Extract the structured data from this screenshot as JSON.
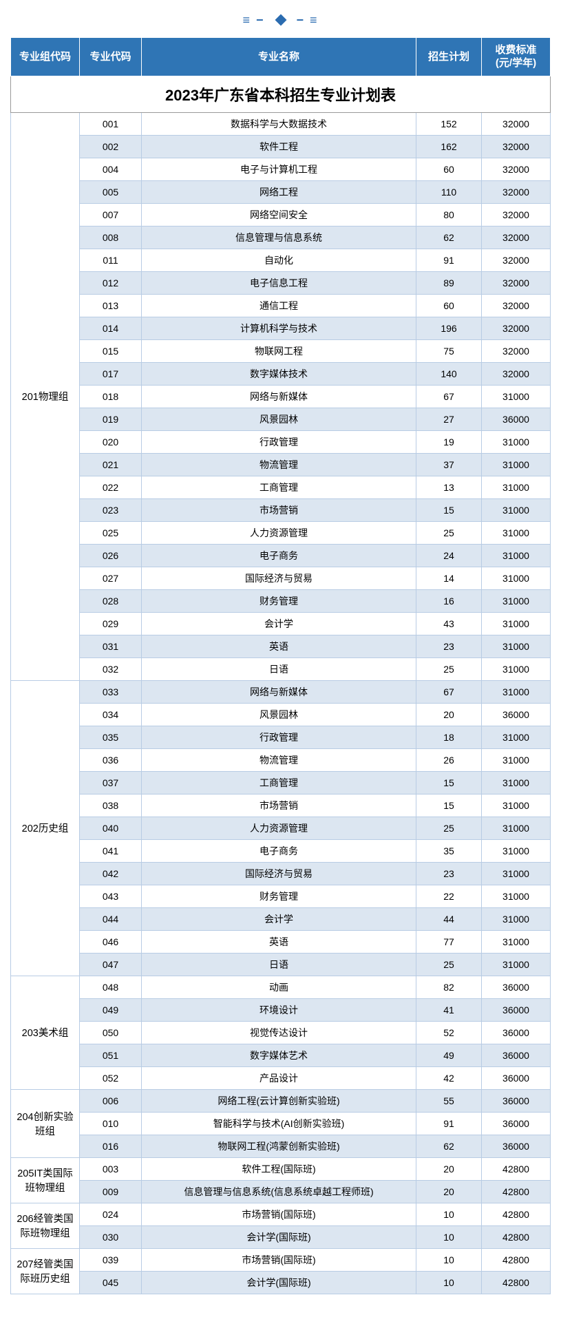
{
  "theme": {
    "header_bg": "#2f75b5",
    "header_fg": "#ffffff",
    "row_alt_bg": "#dce6f1",
    "border_color": "#b8cce4",
    "accent": "#2b6cb0"
  },
  "title": "2023年广东省本科招生专业计划表",
  "columns": [
    "专业组代码",
    "专业代码",
    "专业名称",
    "招生计划",
    "收费标准\n(元/学年)"
  ],
  "groups": [
    {
      "label": "201物理组",
      "rows": [
        {
          "code": "001",
          "name": "数据科学与大数据技术",
          "plan": 152,
          "fee": 32000
        },
        {
          "code": "002",
          "name": "软件工程",
          "plan": 162,
          "fee": 32000
        },
        {
          "code": "004",
          "name": "电子与计算机工程",
          "plan": 60,
          "fee": 32000
        },
        {
          "code": "005",
          "name": "网络工程",
          "plan": 110,
          "fee": 32000
        },
        {
          "code": "007",
          "name": "网络空间安全",
          "plan": 80,
          "fee": 32000
        },
        {
          "code": "008",
          "name": "信息管理与信息系统",
          "plan": 62,
          "fee": 32000
        },
        {
          "code": "011",
          "name": "自动化",
          "plan": 91,
          "fee": 32000
        },
        {
          "code": "012",
          "name": "电子信息工程",
          "plan": 89,
          "fee": 32000
        },
        {
          "code": "013",
          "name": "通信工程",
          "plan": 60,
          "fee": 32000
        },
        {
          "code": "014",
          "name": "计算机科学与技术",
          "plan": 196,
          "fee": 32000
        },
        {
          "code": "015",
          "name": "物联网工程",
          "plan": 75,
          "fee": 32000
        },
        {
          "code": "017",
          "name": "数字媒体技术",
          "plan": 140,
          "fee": 32000
        },
        {
          "code": "018",
          "name": "网络与新媒体",
          "plan": 67,
          "fee": 31000
        },
        {
          "code": "019",
          "name": "风景园林",
          "plan": 27,
          "fee": 36000
        },
        {
          "code": "020",
          "name": "行政管理",
          "plan": 19,
          "fee": 31000
        },
        {
          "code": "021",
          "name": "物流管理",
          "plan": 37,
          "fee": 31000
        },
        {
          "code": "022",
          "name": "工商管理",
          "plan": 13,
          "fee": 31000
        },
        {
          "code": "023",
          "name": "市场营销",
          "plan": 15,
          "fee": 31000
        },
        {
          "code": "025",
          "name": "人力资源管理",
          "plan": 25,
          "fee": 31000
        },
        {
          "code": "026",
          "name": "电子商务",
          "plan": 24,
          "fee": 31000
        },
        {
          "code": "027",
          "name": "国际经济与贸易",
          "plan": 14,
          "fee": 31000
        },
        {
          "code": "028",
          "name": "财务管理",
          "plan": 16,
          "fee": 31000
        },
        {
          "code": "029",
          "name": "会计学",
          "plan": 43,
          "fee": 31000
        },
        {
          "code": "031",
          "name": "英语",
          "plan": 23,
          "fee": 31000
        },
        {
          "code": "032",
          "name": "日语",
          "plan": 25,
          "fee": 31000
        }
      ]
    },
    {
      "label": "202历史组",
      "rows": [
        {
          "code": "033",
          "name": "网络与新媒体",
          "plan": 67,
          "fee": 31000
        },
        {
          "code": "034",
          "name": "风景园林",
          "plan": 20,
          "fee": 36000
        },
        {
          "code": "035",
          "name": "行政管理",
          "plan": 18,
          "fee": 31000
        },
        {
          "code": "036",
          "name": "物流管理",
          "plan": 26,
          "fee": 31000
        },
        {
          "code": "037",
          "name": "工商管理",
          "plan": 15,
          "fee": 31000
        },
        {
          "code": "038",
          "name": "市场营销",
          "plan": 15,
          "fee": 31000
        },
        {
          "code": "040",
          "name": "人力资源管理",
          "plan": 25,
          "fee": 31000
        },
        {
          "code": "041",
          "name": "电子商务",
          "plan": 35,
          "fee": 31000
        },
        {
          "code": "042",
          "name": "国际经济与贸易",
          "plan": 23,
          "fee": 31000
        },
        {
          "code": "043",
          "name": "财务管理",
          "plan": 22,
          "fee": 31000
        },
        {
          "code": "044",
          "name": "会计学",
          "plan": 44,
          "fee": 31000
        },
        {
          "code": "046",
          "name": "英语",
          "plan": 77,
          "fee": 31000
        },
        {
          "code": "047",
          "name": "日语",
          "plan": 25,
          "fee": 31000
        }
      ]
    },
    {
      "label": "203美术组",
      "rows": [
        {
          "code": "048",
          "name": "动画",
          "plan": 82,
          "fee": 36000
        },
        {
          "code": "049",
          "name": "环境设计",
          "plan": 41,
          "fee": 36000
        },
        {
          "code": "050",
          "name": "视觉传达设计",
          "plan": 52,
          "fee": 36000
        },
        {
          "code": "051",
          "name": "数字媒体艺术",
          "plan": 49,
          "fee": 36000
        },
        {
          "code": "052",
          "name": "产品设计",
          "plan": 42,
          "fee": 36000
        }
      ]
    },
    {
      "label": "204创新实验班组",
      "rows": [
        {
          "code": "006",
          "name": "网络工程(云计算创新实验班)",
          "plan": 55,
          "fee": 36000
        },
        {
          "code": "010",
          "name": "智能科学与技术(AI创新实验班)",
          "plan": 91,
          "fee": 36000
        },
        {
          "code": "016",
          "name": "物联网工程(鸿蒙创新实验班)",
          "plan": 62,
          "fee": 36000
        }
      ]
    },
    {
      "label": "205IT类国际班物理组",
      "rows": [
        {
          "code": "003",
          "name": "软件工程(国际班)",
          "plan": 20,
          "fee": 42800
        },
        {
          "code": "009",
          "name": "信息管理与信息系统(信息系统卓越工程师班)",
          "plan": 20,
          "fee": 42800
        }
      ]
    },
    {
      "label": "206经管类国际班物理组",
      "rows": [
        {
          "code": "024",
          "name": "市场营销(国际班)",
          "plan": 10,
          "fee": 42800
        },
        {
          "code": "030",
          "name": "会计学(国际班)",
          "plan": 10,
          "fee": 42800
        }
      ]
    },
    {
      "label": "207经管类国际班历史组",
      "rows": [
        {
          "code": "039",
          "name": "市场营销(国际班)",
          "plan": 10,
          "fee": 42800
        },
        {
          "code": "045",
          "name": "会计学(国际班)",
          "plan": 10,
          "fee": 42800
        }
      ]
    }
  ]
}
